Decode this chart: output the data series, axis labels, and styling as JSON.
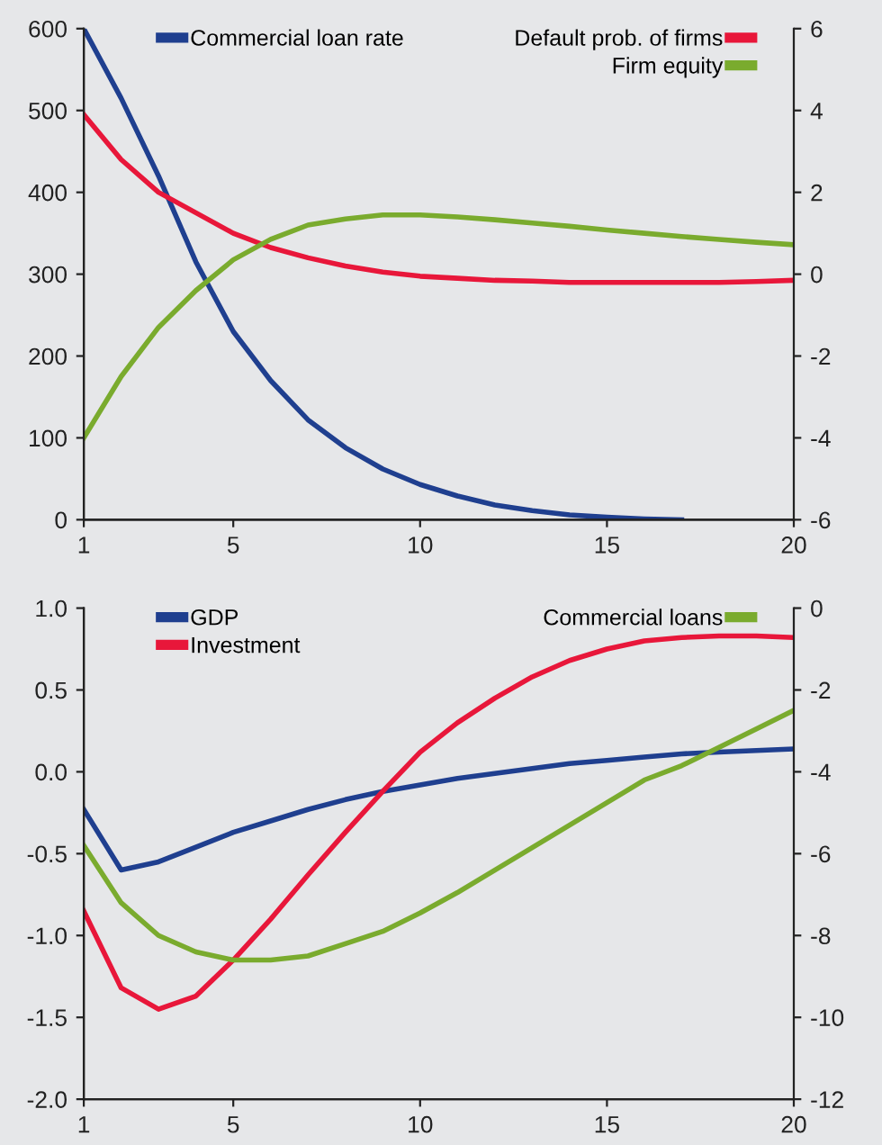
{
  "chart_data": [
    {
      "type": "line",
      "x": [
        1,
        2,
        3,
        4,
        5,
        6,
        7,
        8,
        9,
        10,
        11,
        12,
        13,
        14,
        15,
        16,
        17,
        18,
        19,
        20
      ],
      "xlim": [
        1,
        20
      ],
      "xticks": [
        1,
        5,
        10,
        15,
        20
      ],
      "ylim": [
        0,
        600
      ],
      "yticks": [
        0,
        100,
        200,
        300,
        400,
        500,
        600
      ],
      "y2lim": [
        -6,
        6
      ],
      "y2ticks": [
        -6,
        -4,
        -2,
        0,
        2,
        4,
        6
      ],
      "legend": "top",
      "grid": false,
      "series": [
        {
          "name": "Commercial loan rate",
          "color": "#1f3f8f",
          "values": [
            600,
            515,
            420,
            315,
            230,
            170,
            122,
            88,
            62,
            43,
            29,
            18,
            11,
            6,
            3,
            1,
            0,
            null,
            null,
            null
          ]
        },
        {
          "name": "Default prob. of firms",
          "color": "#e8173a",
          "axis": "y2",
          "values": [
            3.9,
            2.8,
            2.0,
            1.5,
            1.0,
            0.65,
            0.4,
            0.2,
            0.05,
            -0.05,
            -0.1,
            -0.15,
            -0.17,
            -0.2,
            -0.2,
            -0.2,
            -0.2,
            -0.2,
            -0.18,
            -0.15
          ]
        },
        {
          "name": "Firm equity",
          "color": "#7aab2e",
          "axis": "y2",
          "values": [
            -4.0,
            -2.5,
            -1.3,
            -0.4,
            0.35,
            0.85,
            1.2,
            1.35,
            1.45,
            1.45,
            1.4,
            1.33,
            1.25,
            1.17,
            1.08,
            1.0,
            0.92,
            0.85,
            0.78,
            0.72
          ]
        }
      ]
    },
    {
      "type": "line",
      "x": [
        1,
        2,
        3,
        4,
        5,
        6,
        7,
        8,
        9,
        10,
        11,
        12,
        13,
        14,
        15,
        16,
        17,
        18,
        19,
        20
      ],
      "xlim": [
        1,
        20
      ],
      "xticks": [
        1,
        5,
        10,
        15,
        20
      ],
      "ylim": [
        -2.0,
        1.0
      ],
      "yticks": [
        {
          "value": -2.0,
          "label": "-2.0"
        },
        {
          "value": -1.5,
          "label": "-1.5"
        },
        {
          "value": -1.0,
          "label": "-1.0"
        },
        {
          "value": -0.5,
          "label": "-0.5"
        },
        {
          "value": 0.0,
          "label": "0.0"
        },
        {
          "value": 0.5,
          "label": "0.5"
        },
        {
          "value": 1.0,
          "label": "1.0"
        }
      ],
      "y2lim": [
        -12,
        0
      ],
      "y2ticks": [
        -12,
        -10,
        -8,
        -6,
        -4,
        -2,
        0
      ],
      "legend": "top",
      "grid": false,
      "series": [
        {
          "name": "GDP",
          "color": "#1f3f8f",
          "values": [
            -0.23,
            -0.6,
            -0.55,
            -0.46,
            -0.37,
            -0.3,
            -0.23,
            -0.17,
            -0.12,
            -0.08,
            -0.04,
            -0.01,
            0.02,
            0.05,
            0.07,
            0.09,
            0.11,
            0.12,
            0.13,
            0.14
          ]
        },
        {
          "name": "Investment",
          "color": "#e8173a",
          "values": [
            -0.85,
            -1.32,
            -1.45,
            -1.37,
            -1.15,
            -0.9,
            -0.63,
            -0.37,
            -0.12,
            0.12,
            0.3,
            0.45,
            0.58,
            0.68,
            0.75,
            0.8,
            0.82,
            0.83,
            0.83,
            0.82
          ]
        },
        {
          "name": "Commercial loans",
          "color": "#7aab2e",
          "axis": "y2",
          "values": [
            -5.8,
            -7.2,
            -8.0,
            -8.4,
            -8.6,
            -8.6,
            -8.5,
            -8.2,
            -7.9,
            -7.45,
            -6.95,
            -6.4,
            -5.85,
            -5.3,
            -4.75,
            -4.2,
            -3.85,
            -3.4,
            -2.95,
            -2.5
          ]
        }
      ]
    }
  ]
}
